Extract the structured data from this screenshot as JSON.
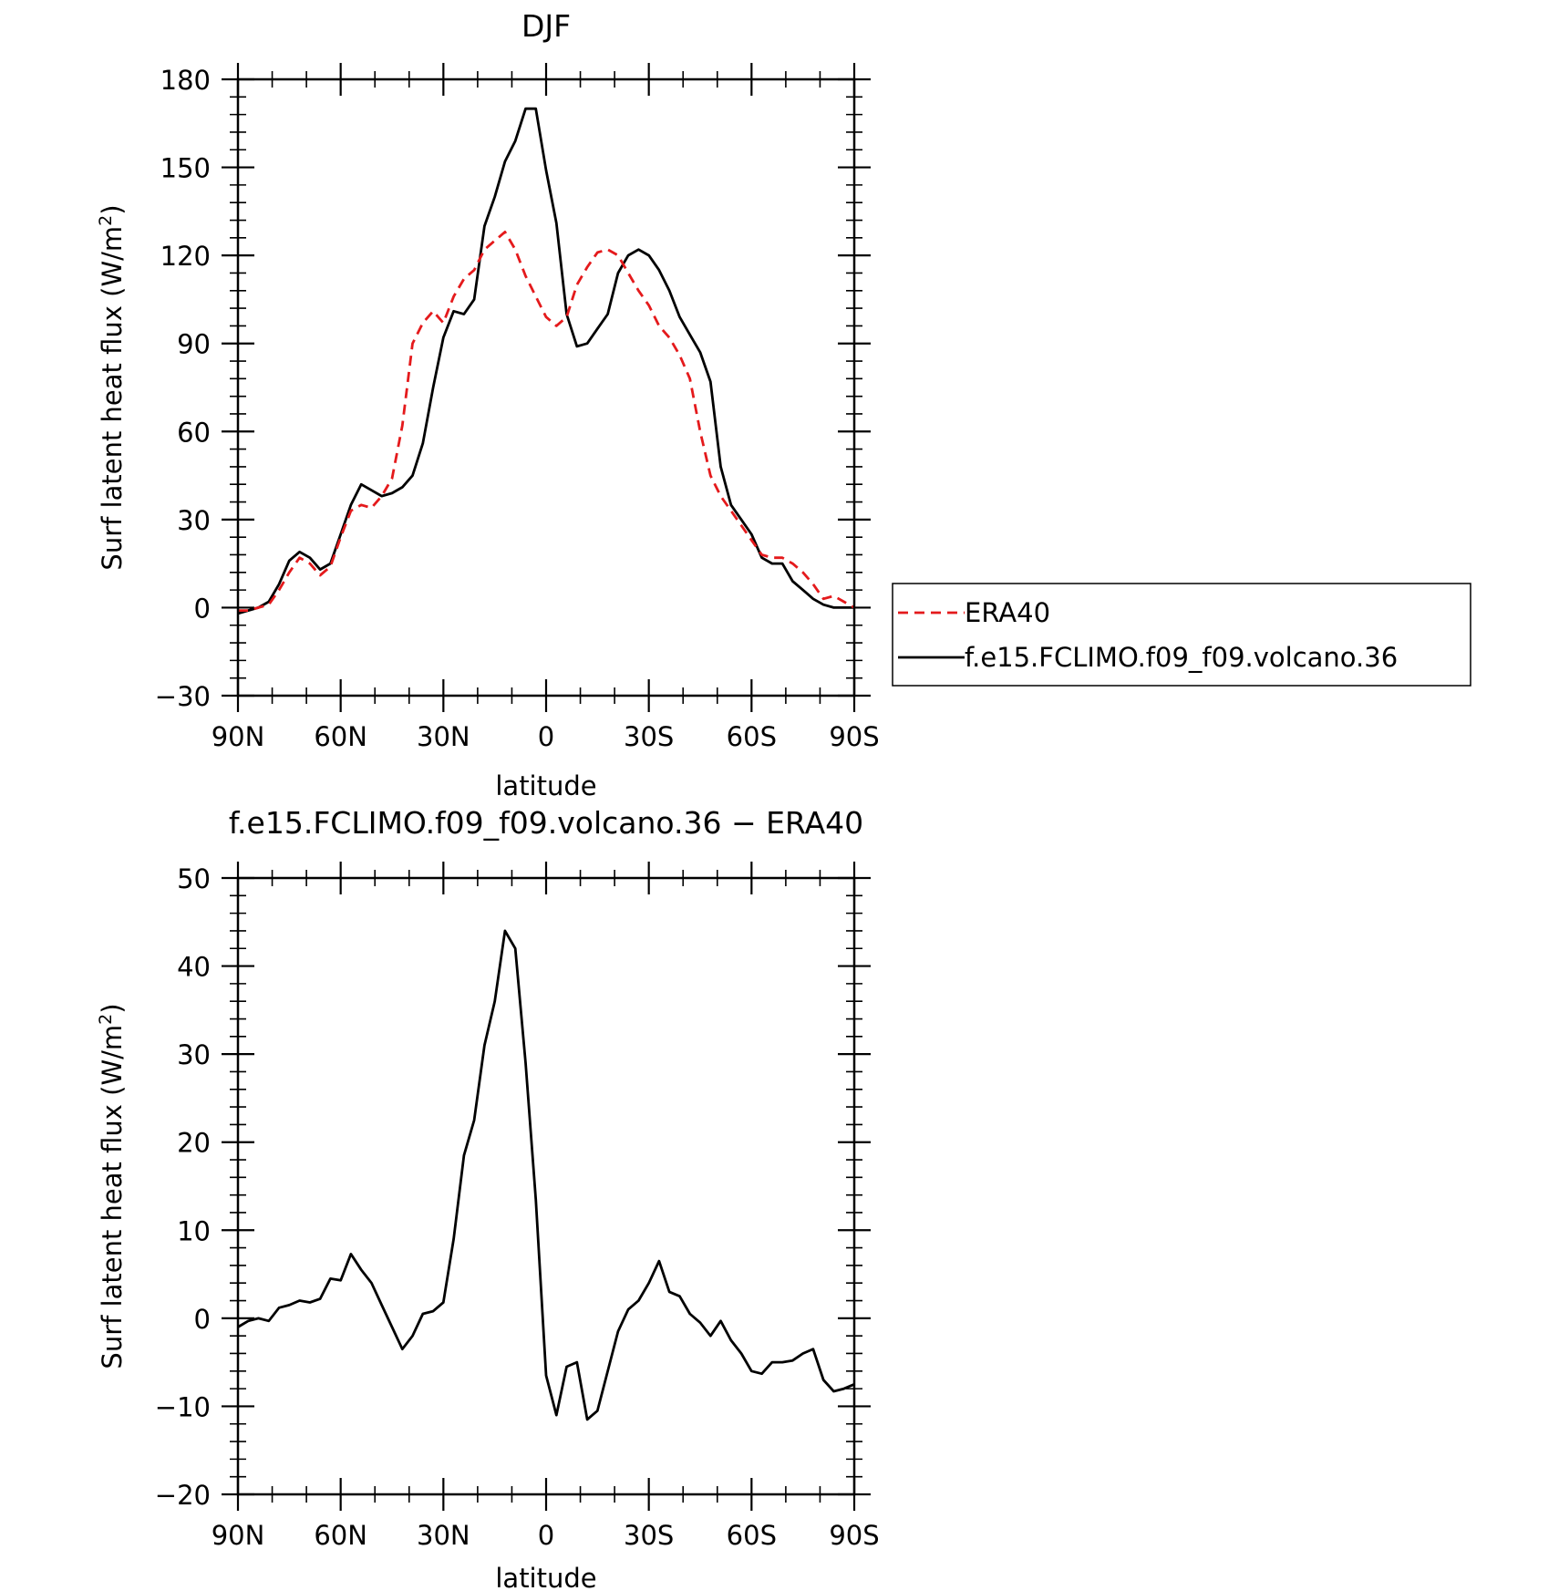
{
  "chart_data": [
    {
      "type": "line",
      "title": "DJF",
      "xlabel": "latitude",
      "ylabel_main": "Surf latent heat flux (W/m",
      "ylabel_sup": "2",
      "ylabel_tail": ")",
      "xlim": [
        90,
        -90
      ],
      "ylim": [
        -30,
        180
      ],
      "xticks": [
        90,
        60,
        30,
        0,
        -30,
        -60,
        -90
      ],
      "xtick_labels": [
        "90N",
        "60N",
        "30N",
        "0",
        "30S",
        "60S",
        "90S"
      ],
      "yticks": [
        -30,
        0,
        30,
        60,
        90,
        120,
        150,
        180
      ],
      "ytick_labels": [
        "−30",
        "0",
        "30",
        "60",
        "90",
        "120",
        "150",
        "180"
      ],
      "legend": {
        "placement": "right",
        "entries": [
          {
            "label": "ERA40",
            "color": "#e41a1c",
            "dash": "dashed"
          },
          {
            "label": "f.e15.FCLIMO.f09_f09.volcano.36",
            "color": "#000000",
            "dash": "solid"
          }
        ]
      },
      "series": [
        {
          "name": "ERA40",
          "color": "#e41a1c",
          "dash": "dashed",
          "x": [
            90,
            87,
            84,
            81,
            78,
            75,
            72,
            69,
            66,
            63,
            60,
            57,
            54,
            51,
            48,
            45,
            42,
            39,
            36,
            33,
            30,
            27,
            24,
            21,
            18,
            15,
            12,
            9,
            6,
            3,
            0,
            -3,
            -6,
            -9,
            -12,
            -15,
            -18,
            -21,
            -24,
            -27,
            -30,
            -33,
            -36,
            -39,
            -42,
            -45,
            -48,
            -51,
            -54,
            -57,
            -60,
            -63,
            -66,
            -69,
            -72,
            -75,
            -78,
            -81,
            -84,
            -87,
            -90
          ],
          "y": [
            -1,
            -1,
            0,
            1,
            6,
            12,
            17,
            15,
            11,
            14,
            24,
            33,
            35,
            34,
            38,
            44,
            62,
            90,
            97,
            101,
            97,
            106,
            112,
            115,
            122,
            125,
            128,
            122,
            113,
            106,
            99,
            96,
            99,
            110,
            116,
            121,
            122,
            120,
            114,
            108,
            103,
            96,
            92,
            86,
            78,
            60,
            45,
            38,
            33,
            28,
            23,
            18,
            17,
            17,
            15,
            12,
            8,
            3,
            4,
            2,
            0
          ]
        },
        {
          "name": "f.e15.FCLIMO.f09_f09.volcano.36",
          "color": "#000000",
          "dash": "solid",
          "x": [
            90,
            87,
            84,
            81,
            78,
            75,
            72,
            69,
            66,
            63,
            60,
            57,
            54,
            51,
            48,
            45,
            42,
            39,
            36,
            33,
            30,
            27,
            24,
            21,
            18,
            15,
            12,
            9,
            6,
            3,
            0,
            -3,
            -6,
            -9,
            -12,
            -15,
            -18,
            -21,
            -24,
            -27,
            -30,
            -33,
            -36,
            -39,
            -42,
            -45,
            -48,
            -51,
            -54,
            -57,
            -60,
            -63,
            -66,
            -69,
            -72,
            -75,
            -78,
            -81,
            -84,
            -87,
            -90
          ],
          "y": [
            -2,
            -1,
            0,
            2,
            8,
            16,
            19,
            17,
            13,
            15,
            25,
            35,
            42,
            40,
            38,
            39,
            41,
            45,
            56,
            75,
            92,
            101,
            100,
            105,
            130,
            140,
            152,
            159,
            170,
            170,
            149,
            131,
            100,
            89,
            90,
            95,
            100,
            114,
            120,
            122,
            120,
            115,
            108,
            99,
            93,
            87,
            77,
            48,
            35,
            30,
            25,
            17,
            15,
            15,
            9,
            6,
            3,
            1,
            0,
            0,
            0
          ]
        }
      ]
    },
    {
      "type": "line",
      "title": "f.e15.FCLIMO.f09_f09.volcano.36 − ERA40",
      "xlabel": "latitude",
      "ylabel_main": "Surf latent heat flux (W/m",
      "ylabel_sup": "2",
      "ylabel_tail": ")",
      "xlim": [
        90,
        -90
      ],
      "ylim": [
        -20,
        50
      ],
      "xticks": [
        90,
        60,
        30,
        0,
        -30,
        -60,
        -90
      ],
      "xtick_labels": [
        "90N",
        "60N",
        "30N",
        "0",
        "30S",
        "60S",
        "90S"
      ],
      "yticks": [
        -20,
        -10,
        0,
        10,
        20,
        30,
        40,
        50
      ],
      "ytick_labels": [
        "−20",
        "−10",
        "0",
        "10",
        "20",
        "30",
        "40",
        "50"
      ],
      "series": [
        {
          "name": "",
          "color": "#000000",
          "dash": "solid",
          "x": [
            90,
            87,
            84,
            81,
            78,
            75,
            72,
            69,
            66,
            63,
            60,
            57,
            54,
            51,
            48,
            45,
            42,
            39,
            36,
            33,
            30,
            27,
            24,
            21,
            18,
            15,
            12,
            9,
            6,
            3,
            0,
            -3,
            -6,
            -9,
            -12,
            -15,
            -18,
            -21,
            -24,
            -27,
            -30,
            -33,
            -36,
            -39,
            -42,
            -45,
            -48,
            -51,
            -54,
            -57,
            -60,
            -63,
            -66,
            -69,
            -72,
            -75,
            -78,
            -81,
            -84,
            -87,
            -90
          ],
          "y": [
            -1,
            -0.3,
            0,
            -0.3,
            1.2,
            1.5,
            2,
            1.8,
            2.2,
            4.5,
            4.3,
            7.3,
            5.5,
            4,
            1.5,
            -1,
            -3.5,
            -2,
            0.5,
            0.8,
            1.8,
            9,
            18.5,
            22.5,
            31,
            36,
            44,
            42,
            29,
            13.5,
            -6.5,
            -11,
            -5.5,
            -5,
            -11.5,
            -10.5,
            -6,
            -1.5,
            1,
            2,
            4,
            6.5,
            3,
            2.5,
            0.5,
            -0.5,
            -2,
            -0.3,
            -2.5,
            -4,
            -6,
            -6.3,
            -5,
            -5,
            -4.8,
            -4,
            -3.5,
            -7,
            -8.3,
            -8,
            -7.5
          ]
        }
      ]
    }
  ]
}
